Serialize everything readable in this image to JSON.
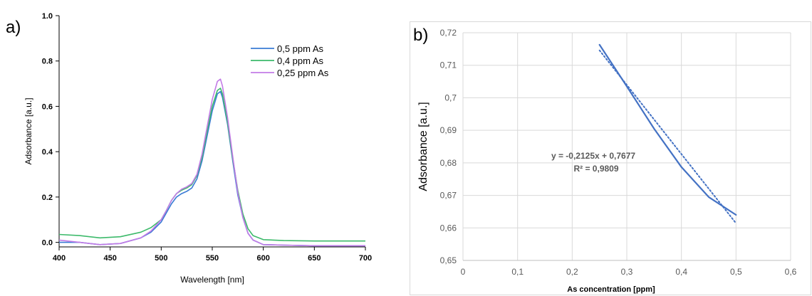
{
  "panels": {
    "a_label": "a)",
    "b_label": "b)"
  },
  "chart_data": [
    {
      "type": "line",
      "xlabel": "Wavelength [nm]",
      "ylabel": "Adsorbance [a.u.]",
      "xlim": [
        400,
        700
      ],
      "ylim": [
        -0.02,
        1.0
      ],
      "xticks": [
        400,
        450,
        500,
        550,
        600,
        650,
        700
      ],
      "yticks": [
        0.0,
        0.2,
        0.4,
        0.6,
        0.8,
        1.0
      ],
      "xtick_labels": [
        "400",
        "450",
        "500",
        "550",
        "600",
        "650",
        "700"
      ],
      "ytick_labels": [
        "0.0",
        "0.2",
        "0.4",
        "0.6",
        "0.8",
        "1.0"
      ],
      "legend_position": "top-right",
      "grid": false,
      "series": [
        {
          "name": "0,5 ppm As",
          "color": "#3a7bd5",
          "x": [
            400,
            420,
            440,
            460,
            480,
            490,
            500,
            505,
            510,
            515,
            520,
            525,
            530,
            535,
            540,
            545,
            550,
            555,
            558,
            560,
            565,
            570,
            575,
            580,
            585,
            590,
            600,
            620,
            650,
            700
          ],
          "y": [
            0.0,
            0.0,
            -0.01,
            -0.005,
            0.02,
            0.045,
            0.09,
            0.13,
            0.17,
            0.2,
            0.215,
            0.225,
            0.24,
            0.28,
            0.36,
            0.47,
            0.58,
            0.655,
            0.665,
            0.64,
            0.52,
            0.36,
            0.21,
            0.11,
            0.04,
            0.01,
            -0.01,
            -0.012,
            -0.015,
            -0.015
          ]
        },
        {
          "name": "0,4 ppm As",
          "color": "#3dba6b",
          "x": [
            400,
            420,
            440,
            460,
            480,
            490,
            500,
            505,
            510,
            515,
            520,
            525,
            530,
            535,
            540,
            545,
            550,
            555,
            558,
            560,
            565,
            570,
            575,
            580,
            585,
            590,
            600,
            620,
            650,
            700
          ],
          "y": [
            0.035,
            0.03,
            0.02,
            0.025,
            0.045,
            0.065,
            0.1,
            0.14,
            0.185,
            0.215,
            0.23,
            0.24,
            0.255,
            0.295,
            0.375,
            0.49,
            0.6,
            0.67,
            0.68,
            0.655,
            0.53,
            0.37,
            0.23,
            0.125,
            0.06,
            0.03,
            0.012,
            0.008,
            0.006,
            0.006
          ]
        },
        {
          "name": "0,25 ppm As",
          "color": "#c27be6",
          "x": [
            400,
            420,
            440,
            460,
            480,
            490,
            500,
            505,
            510,
            515,
            520,
            525,
            530,
            535,
            540,
            545,
            550,
            555,
            558,
            560,
            565,
            570,
            575,
            580,
            585,
            590,
            600,
            620,
            650,
            700
          ],
          "y": [
            0.01,
            0.0,
            -0.01,
            -0.005,
            0.02,
            0.05,
            0.1,
            0.14,
            0.185,
            0.215,
            0.235,
            0.245,
            0.26,
            0.3,
            0.39,
            0.51,
            0.63,
            0.71,
            0.72,
            0.69,
            0.55,
            0.38,
            0.22,
            0.11,
            0.04,
            0.01,
            -0.01,
            -0.012,
            -0.015,
            -0.015
          ]
        }
      ]
    },
    {
      "type": "line",
      "xlabel": "As concentration [ppm]",
      "ylabel": "Adsorbance [a.u.]",
      "xlim": [
        0,
        0.6
      ],
      "ylim": [
        0.65,
        0.72
      ],
      "xticks": [
        0,
        0.1,
        0.2,
        0.3,
        0.4,
        0.5,
        0.6
      ],
      "yticks": [
        0.65,
        0.66,
        0.67,
        0.68,
        0.69,
        0.7,
        0.71,
        0.72
      ],
      "xtick_labels": [
        "0",
        "0,1",
        "0,2",
        "0,3",
        "0,4",
        "0,5",
        "0,6"
      ],
      "ytick_labels": [
        "0,65",
        "0,66",
        "0,67",
        "0,68",
        "0,69",
        "0,7",
        "0,71",
        "0,72"
      ],
      "grid": true,
      "annotation": {
        "equation": "y = -0,2125x + 0,7677",
        "r2": "R² = 0,9809"
      },
      "series": [
        {
          "color": "#4472c4",
          "x": [
            0.25,
            0.3,
            0.35,
            0.4,
            0.45,
            0.5
          ],
          "y": [
            0.7163,
            0.7035,
            0.6905,
            0.6787,
            0.6695,
            0.664
          ]
        },
        {
          "style": "dotted",
          "color": "#4472c4",
          "x": [
            0.25,
            0.5
          ],
          "y": [
            0.71458,
            0.66145
          ]
        }
      ]
    }
  ]
}
